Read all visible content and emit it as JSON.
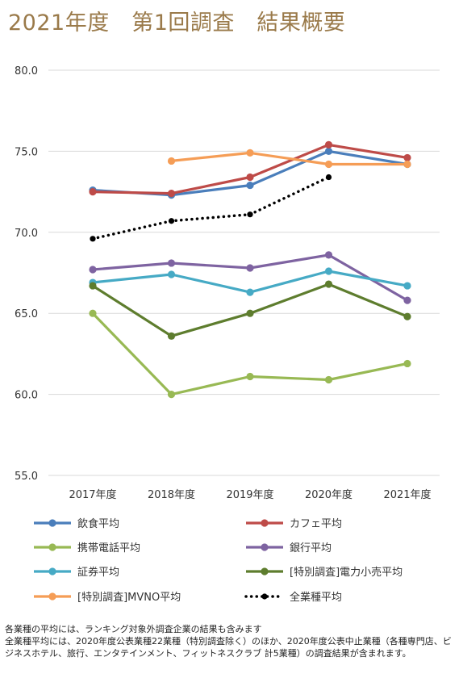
{
  "title": "2021年度　第1回調査　結果概要",
  "chart_data": {
    "type": "line",
    "categories": [
      "2017年度",
      "2018年度",
      "2019年度",
      "2020年度",
      "2021年度"
    ],
    "ylim": [
      55,
      80
    ],
    "yticks": [
      "55.0",
      "60.0",
      "65.0",
      "70.0",
      "75.0",
      "80.0"
    ],
    "grid": true,
    "legend_position": "bottom",
    "series": [
      {
        "name": "飲食平均",
        "color": "#4a7ebb",
        "dashed": false,
        "values": [
          72.6,
          72.3,
          72.9,
          75.0,
          74.2
        ]
      },
      {
        "name": "カフェ平均",
        "color": "#be4b48",
        "dashed": false,
        "values": [
          72.5,
          72.4,
          73.4,
          75.4,
          74.6
        ]
      },
      {
        "name": "携帯電話平均",
        "color": "#98b954",
        "dashed": false,
        "values": [
          65.0,
          60.0,
          61.1,
          60.9,
          61.9
        ]
      },
      {
        "name": "銀行平均",
        "color": "#7e63a1",
        "dashed": false,
        "values": [
          67.7,
          68.1,
          67.8,
          68.6,
          65.8
        ]
      },
      {
        "name": "証券平均",
        "color": "#46aac5",
        "dashed": false,
        "values": [
          66.9,
          67.4,
          66.3,
          67.6,
          66.7
        ]
      },
      {
        "name": "[特別調査]電力小売平均",
        "color": "#5e7d2e",
        "dashed": false,
        "values": [
          66.7,
          63.6,
          65.0,
          66.8,
          64.8
        ]
      },
      {
        "name": "[特別調査]MVNO平均",
        "color": "#f59d56",
        "dashed": false,
        "values": [
          null,
          74.4,
          74.9,
          74.2,
          74.2
        ]
      },
      {
        "name": "全業種平均",
        "color": "#000000",
        "dashed": true,
        "values": [
          69.6,
          70.7,
          71.1,
          73.4,
          null
        ]
      }
    ]
  },
  "notes": [
    "各業種の平均には、ランキング対象外調査企業の結果も含みます",
    "全業種平均には、2020年度公表業種22業種（特別調査除く）のほか、2020年度公表中止業種（各種専門店、ビジネスホテル、旅行、エンタテインメント、フィットネスクラブ 計5業種）の調査結果が含まれます。"
  ]
}
